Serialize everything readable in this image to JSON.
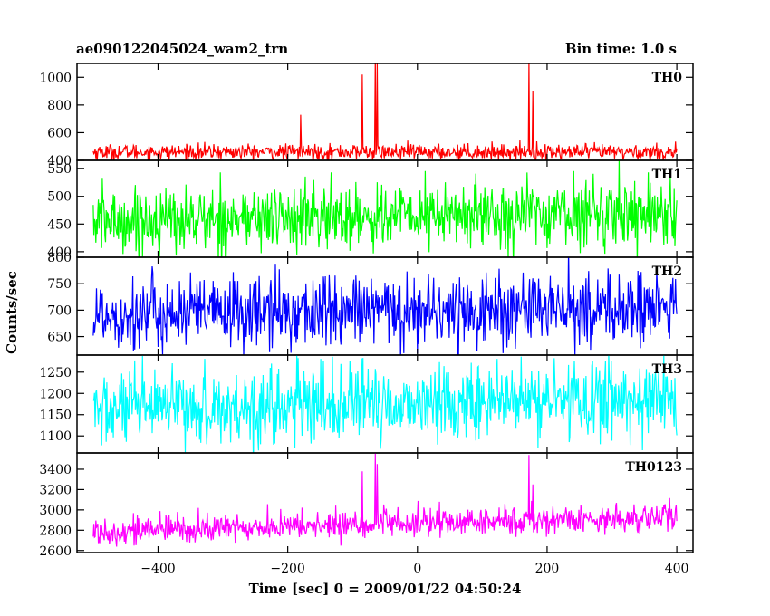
{
  "header": {
    "title": "ae090122045024_wam2_trn",
    "bin_time": "Bin time: 1.0 s"
  },
  "chart_data": {
    "type": "line",
    "title": "ae090122045024_wam2_trn",
    "subtitle": "Bin time: 1.0 s",
    "xlabel": "Time [sec] 0 = 2009/01/22 04:50:24",
    "ylabel": "Counts/sec",
    "xlim": [
      -525,
      425
    ],
    "x_ticks": [
      -400,
      -200,
      0,
      200,
      400
    ],
    "x_tick_labels": [
      "−400",
      "−200",
      "0",
      "200",
      "400"
    ],
    "x_range_data": [
      -500,
      400
    ],
    "panels": [
      {
        "name": "TH0",
        "color": "#ff0000",
        "ylim": [
          400,
          1100
        ],
        "y_ticks": [
          400,
          600,
          800,
          1000
        ],
        "y_tick_labels": [
          "400",
          "600",
          "800",
          "1000"
        ],
        "baseline": 460,
        "noise": 28,
        "trend": 0,
        "spikes": [
          {
            "x": -180,
            "y": 730
          },
          {
            "x": -85,
            "y": 1020
          },
          {
            "x": -65,
            "y": 1150
          },
          {
            "x": -62,
            "y": 1100
          },
          {
            "x": 172,
            "y": 1120
          },
          {
            "x": 178,
            "y": 900
          }
        ]
      },
      {
        "name": "TH1",
        "color": "#00ff00",
        "ylim": [
          390,
          565
        ],
        "y_ticks": [
          400,
          450,
          500,
          550
        ],
        "y_tick_labels": [
          "400",
          "450",
          "500",
          "550"
        ],
        "baseline": 455,
        "noise": 30,
        "trend": 18,
        "spikes": []
      },
      {
        "name": "TH2",
        "color": "#0000ff",
        "ylim": [
          615,
          800
        ],
        "y_ticks": [
          650,
          700,
          750,
          800
        ],
        "y_tick_labels": [
          "650",
          "700",
          "750",
          "800"
        ],
        "baseline": 692,
        "noise": 35,
        "trend": 12,
        "spikes": []
      },
      {
        "name": "TH3",
        "color": "#00ffff",
        "ylim": [
          1060,
          1290
        ],
        "y_ticks": [
          1100,
          1150,
          1200,
          1250
        ],
        "y_tick_labels": [
          "1100",
          "1150",
          "1200",
          "1250"
        ],
        "baseline": 1160,
        "noise": 45,
        "trend": 30,
        "spikes": []
      },
      {
        "name": "TH0123",
        "color": "#ff00ff",
        "ylim": [
          2580,
          3560
        ],
        "y_ticks": [
          2600,
          2800,
          3000,
          3200,
          3400
        ],
        "y_tick_labels": [
          "2600",
          "2800",
          "3000",
          "3200",
          "3400"
        ],
        "baseline": 2790,
        "noise": 70,
        "trend": 140,
        "spikes": [
          {
            "x": -85,
            "y": 3380
          },
          {
            "x": -65,
            "y": 3560
          },
          {
            "x": -62,
            "y": 3450
          },
          {
            "x": 172,
            "y": 3540
          },
          {
            "x": 178,
            "y": 3250
          }
        ]
      }
    ]
  }
}
